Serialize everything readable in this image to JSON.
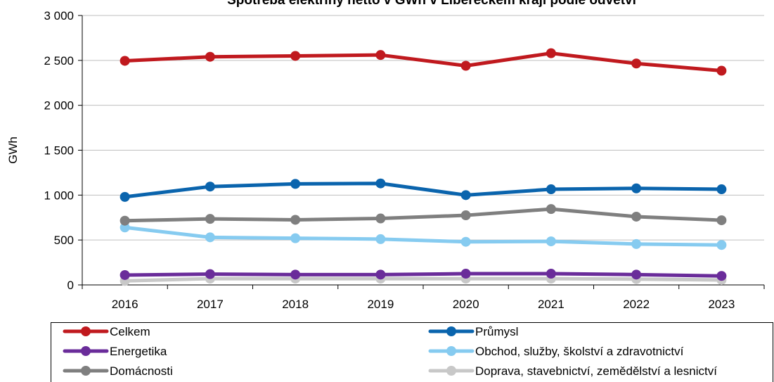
{
  "chart_data": {
    "type": "line",
    "title": "Spotřeba elektřiny netto v GWh v Libereckém kraji podle odvětví",
    "ylabel": "GWh",
    "xlabel": "",
    "ylim": [
      0,
      3000
    ],
    "yticks": [
      0,
      500,
      1000,
      1500,
      2000,
      2500,
      3000
    ],
    "ytick_labels": [
      "0",
      "500",
      "1 000",
      "1 500",
      "2 000",
      "2 500",
      "3 000"
    ],
    "categories": [
      "2016",
      "2017",
      "2018",
      "2019",
      "2020",
      "2021",
      "2022",
      "2023"
    ],
    "grid": "horizontal",
    "legend_position": "bottom",
    "series": [
      {
        "name": "Celkem",
        "color": "#C0191E",
        "values": [
          2495,
          2540,
          2550,
          2560,
          2440,
          2580,
          2465,
          2385
        ]
      },
      {
        "name": "Průmysl",
        "color": "#0A64AD",
        "values": [
          980,
          1095,
          1125,
          1130,
          1000,
          1065,
          1075,
          1065
        ]
      },
      {
        "name": "Energetika",
        "color": "#6A2C9A",
        "values": [
          110,
          120,
          115,
          115,
          125,
          125,
          115,
          100
        ]
      },
      {
        "name": "Obchod, služby, školství a zdravotnictví",
        "color": "#86CBF0",
        "values": [
          640,
          530,
          520,
          510,
          480,
          485,
          455,
          445
        ]
      },
      {
        "name": "Domácnosti",
        "color": "#7F7F7F",
        "values": [
          715,
          735,
          725,
          740,
          775,
          845,
          760,
          720
        ]
      },
      {
        "name": "Doprava, stavebnictví, zemědělství a lesnictví",
        "color": "#C8C8C8",
        "values": [
          45,
          70,
          70,
          70,
          70,
          70,
          65,
          55
        ]
      }
    ]
  }
}
